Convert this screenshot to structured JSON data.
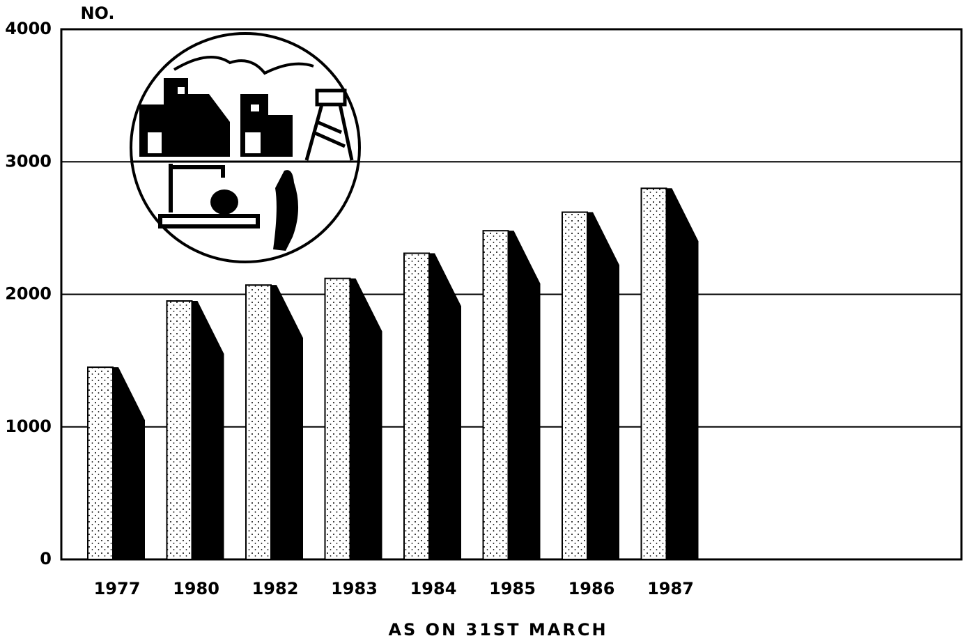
{
  "chart_data": {
    "type": "bar",
    "y_label": "NO.",
    "x_label": "AS ON 31ST MARCH",
    "categories": [
      "1977",
      "1980",
      "1982",
      "1983",
      "1984",
      "1985",
      "1986",
      "1987"
    ],
    "values": [
      1450,
      1950,
      2070,
      2120,
      2310,
      2480,
      2620,
      2800
    ],
    "color": "#000000",
    "ylim": [
      0,
      4000
    ],
    "yticks": [
      0,
      1000,
      2000,
      3000,
      4000
    ],
    "grid": true
  }
}
